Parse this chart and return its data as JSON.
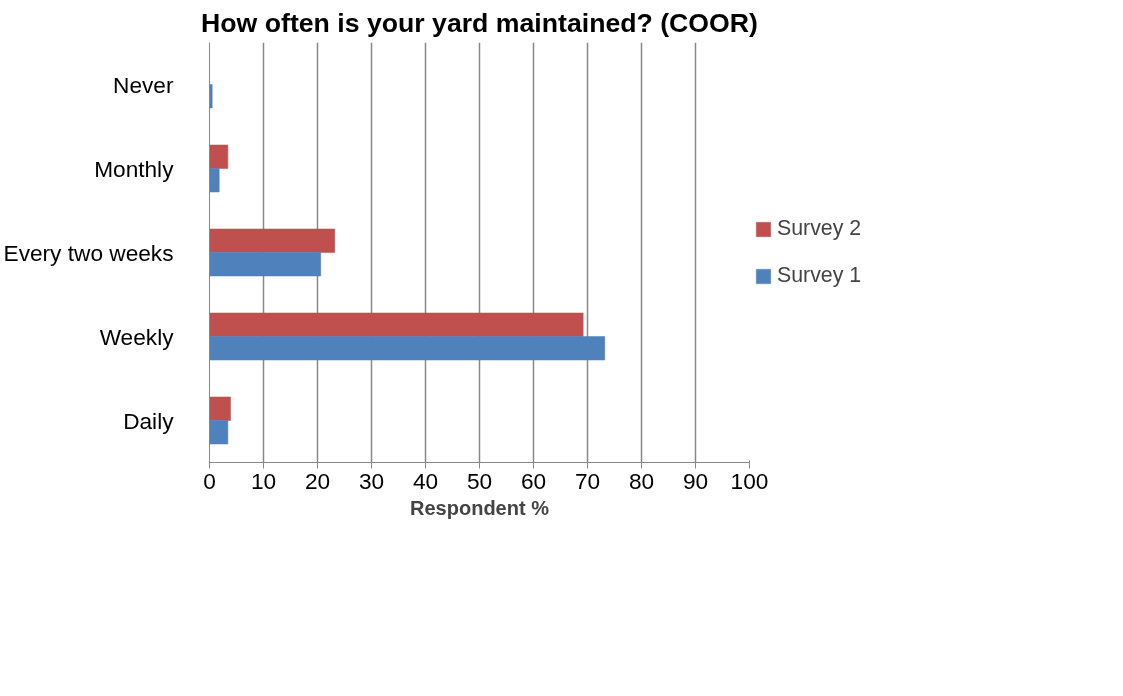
{
  "chart_data": {
    "type": "bar",
    "orientation": "horizontal",
    "title": "How often is your yard maintained? (COOR)",
    "xlabel": "Respondent %",
    "categories": [
      "Never",
      "Monthly",
      "Every two weeks",
      "Weekly",
      "Daily"
    ],
    "series": [
      {
        "name": "Survey 2",
        "color": "#c0504d",
        "values": [
          0,
          3.4,
          23.2,
          69.2,
          3.9
        ]
      },
      {
        "name": "Survey 1",
        "color": "#4f81bd",
        "values": [
          0.5,
          1.8,
          20.6,
          73.2,
          3.4
        ]
      }
    ],
    "xlim": [
      0,
      100
    ],
    "xticks": [
      0,
      10,
      20,
      30,
      40,
      50,
      60,
      70,
      80,
      90,
      100
    ],
    "grid": "x",
    "legend": "right"
  }
}
